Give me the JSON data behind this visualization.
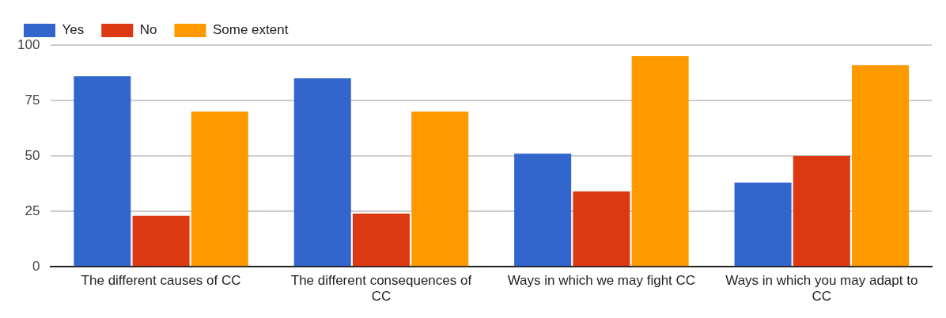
{
  "chart_data": {
    "type": "bar",
    "categories": [
      "The different causes of CC",
      "The different consequences of CC",
      "Ways in which we may fight CC",
      "Ways in which you may adapt to CC"
    ],
    "series": [
      {
        "name": "Yes",
        "color": "#3366cc",
        "values": [
          86,
          85,
          51,
          38
        ]
      },
      {
        "name": "No",
        "color": "#dc3912",
        "values": [
          23,
          24,
          34,
          50
        ]
      },
      {
        "name": "Some extent",
        "color": "#ff9900",
        "values": [
          70,
          70,
          95,
          91
        ]
      }
    ],
    "ylim": [
      0,
      100
    ],
    "yticks": [
      0,
      25,
      50,
      75,
      100
    ],
    "grid": "y",
    "legend": "top left"
  }
}
